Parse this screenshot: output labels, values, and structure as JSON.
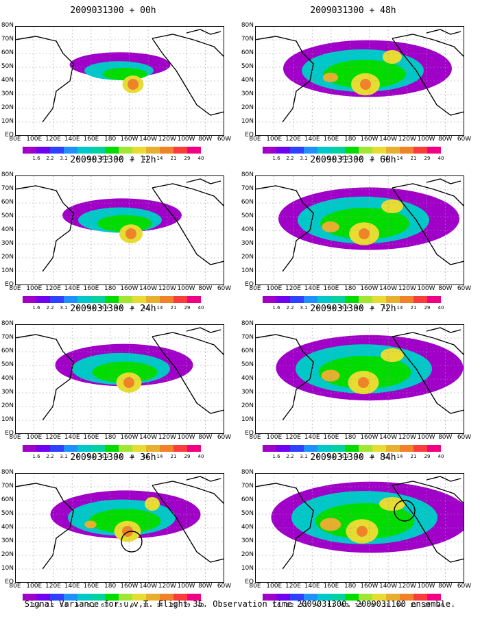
{
  "panels": [
    {
      "title": "2009031300 + 00h",
      "lead": "00h",
      "intensity": 0.15
    },
    {
      "title": "2009031300 + 48h",
      "lead": "48h",
      "intensity": 0.7
    },
    {
      "title": "2009031300 + 12h",
      "lead": "12h",
      "intensity": 0.3
    },
    {
      "title": "2009031300 + 60h",
      "lead": "60h",
      "intensity": 0.8
    },
    {
      "title": "2009031300 + 24h",
      "lead": "24h",
      "intensity": 0.45
    },
    {
      "title": "2009031300 + 72h",
      "lead": "72h",
      "intensity": 0.85
    },
    {
      "title": "2009031300 + 36h",
      "lead": "36h",
      "intensity": 0.55
    },
    {
      "title": "2009031300 + 84h",
      "lead": "84h",
      "intensity": 0.95
    }
  ],
  "lat_labels": [
    "80N",
    "70N",
    "60N",
    "50N",
    "40N",
    "30N",
    "20N",
    "10N",
    "EQ"
  ],
  "lon_labels": [
    "80E",
    "100E",
    "120E",
    "140E",
    "160E",
    "180",
    "160W",
    "140W",
    "120W",
    "100W",
    "80W",
    "60W"
  ],
  "colorbar": {
    "labels": [
      "1.6",
      "2.2",
      "3.1",
      "4",
      "5.1",
      "6.3",
      "7.5",
      "9",
      "11",
      "14",
      "21",
      "29",
      "40"
    ],
    "colors": [
      "#a000c8",
      "#7200f0",
      "#3040ff",
      "#2090ff",
      "#00c8c8",
      "#00d2a0",
      "#00dc00",
      "#a0e632",
      "#e6dc32",
      "#e6af2d",
      "#f08228",
      "#fa3c3c",
      "#f00082"
    ]
  },
  "caption": "Signal Variance for u,v,T. Flight 35. Observation time 2009031300. 2009031100 ensemble."
}
